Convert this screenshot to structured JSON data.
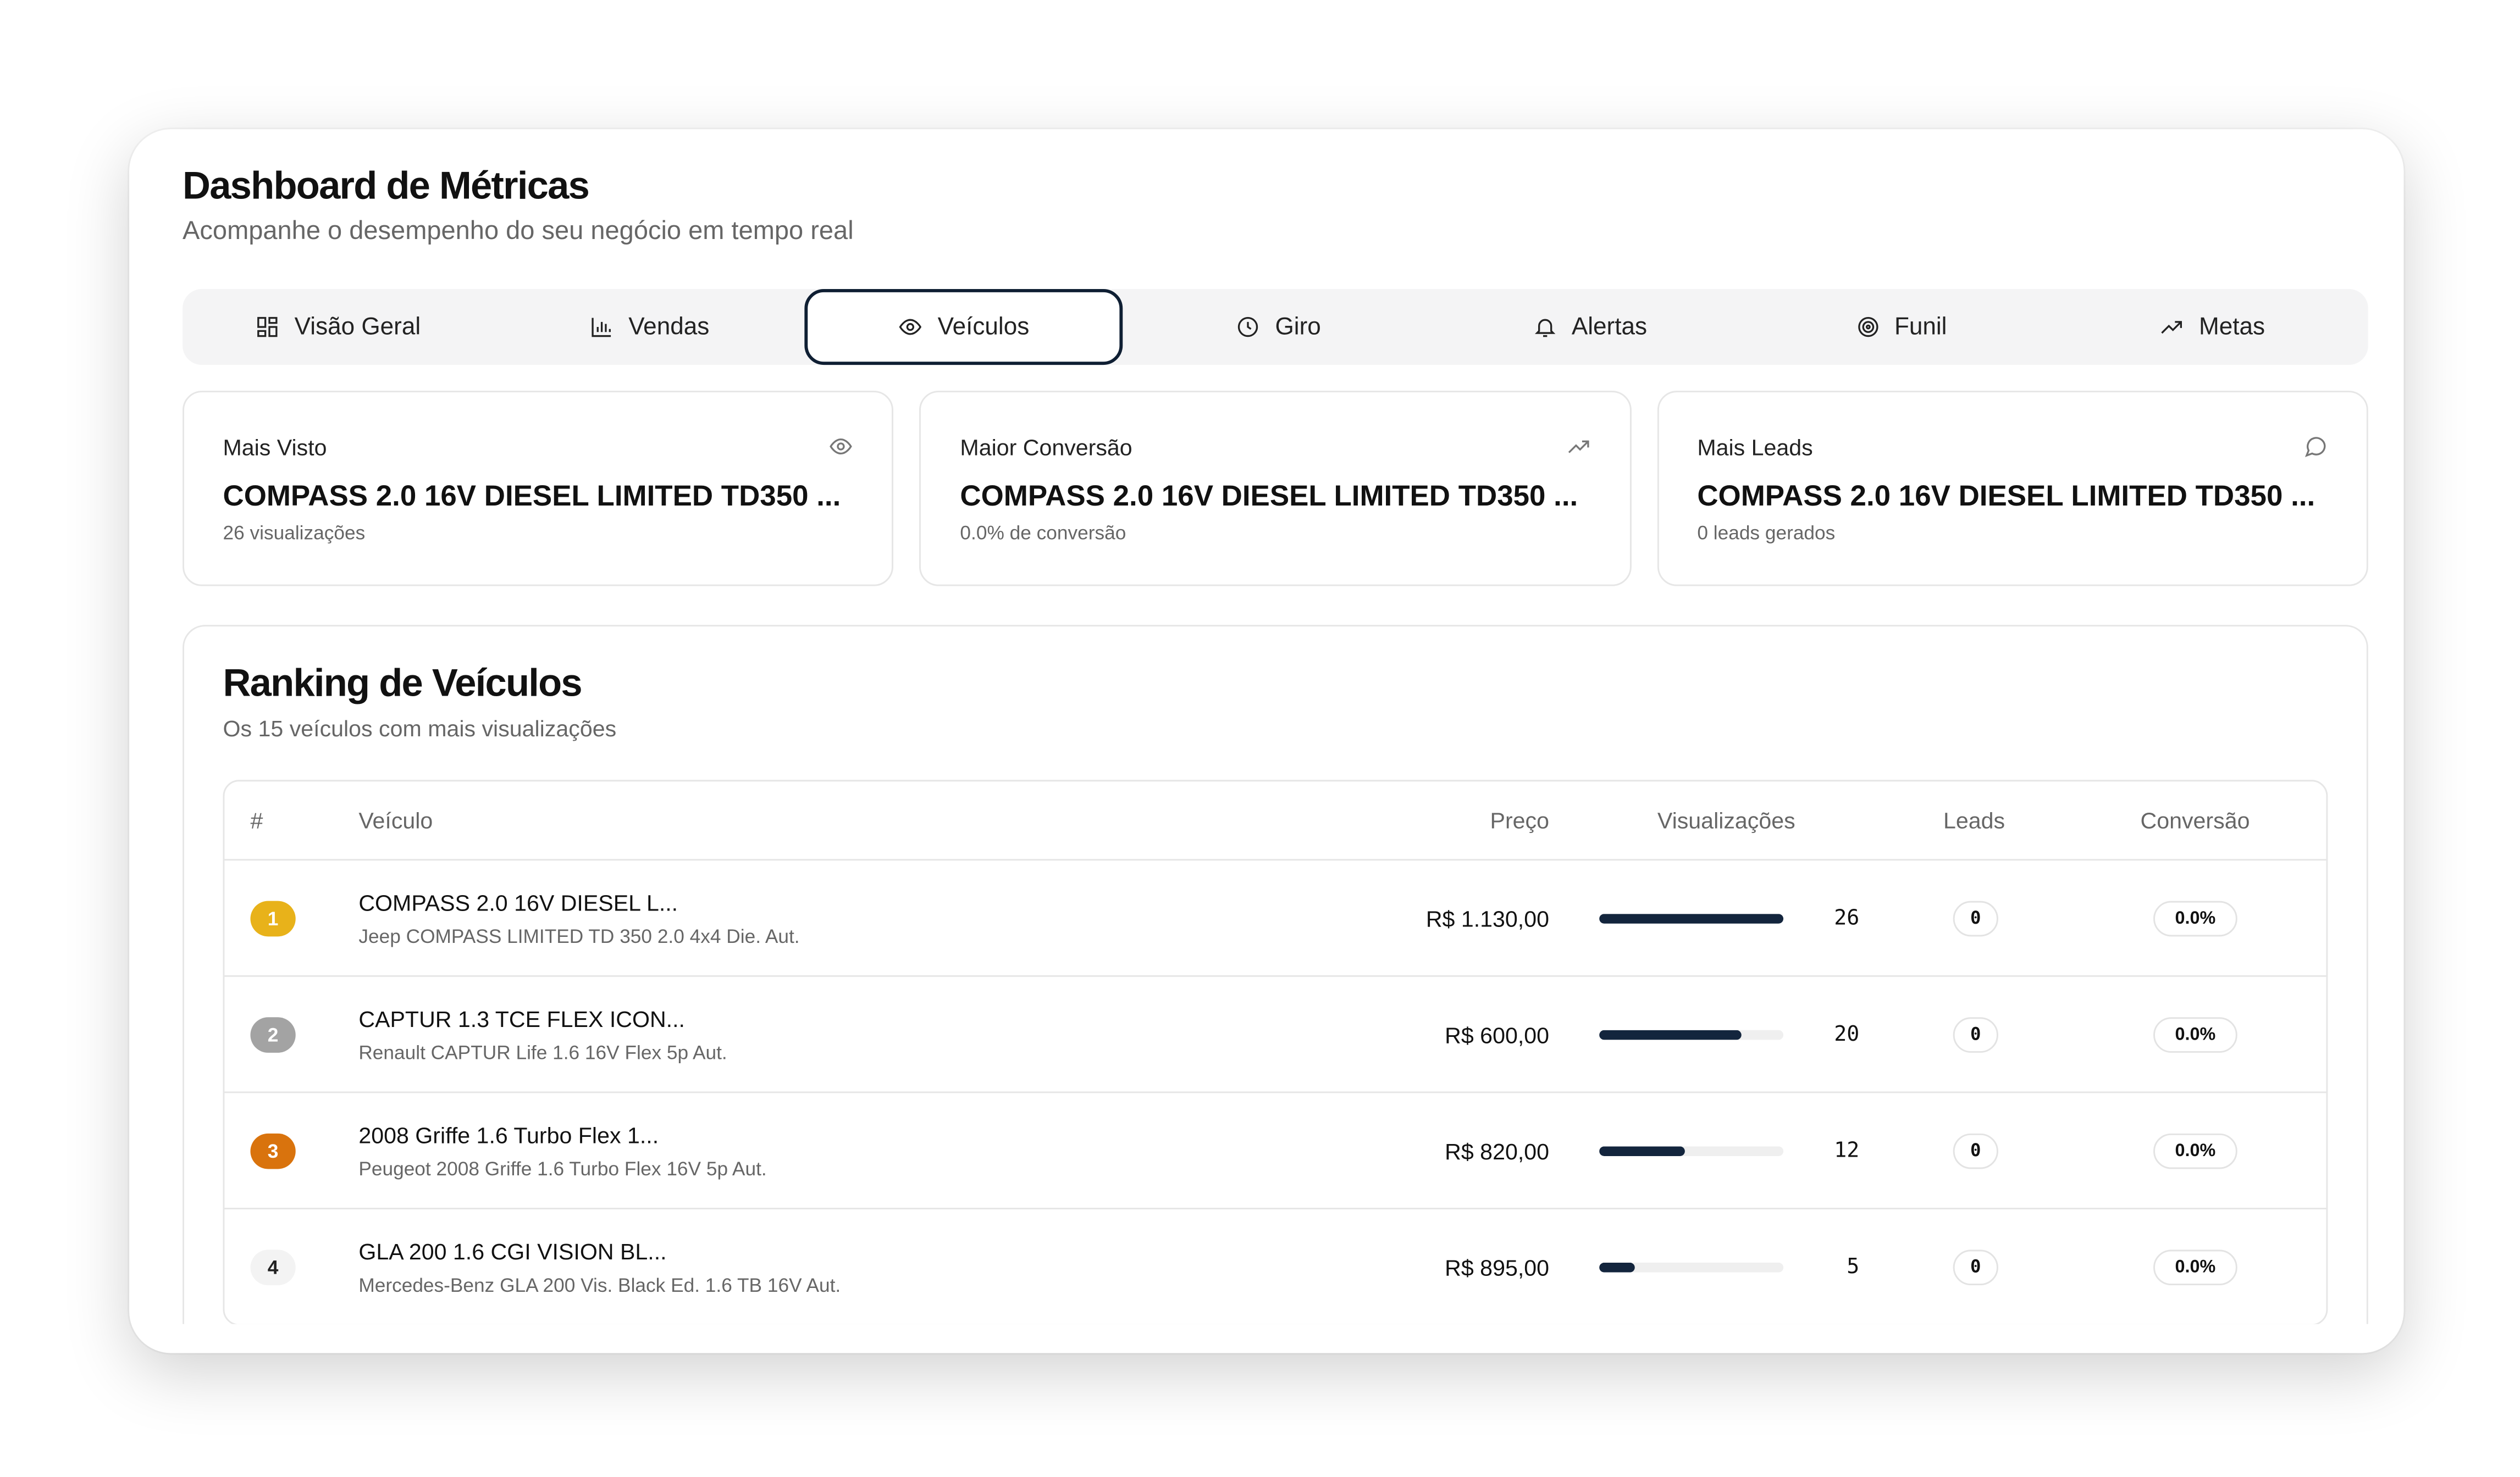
{
  "header": {
    "title": "Dashboard de Métricas",
    "subtitle": "Acompanhe o desempenho do seu negócio em tempo real"
  },
  "tabs": [
    {
      "label": "Visão Geral",
      "icon": "grid-icon"
    },
    {
      "label": "Vendas",
      "icon": "bar-chart-icon"
    },
    {
      "label": "Veículos",
      "icon": "eye-icon",
      "active": true
    },
    {
      "label": "Giro",
      "icon": "clock-icon"
    },
    {
      "label": "Alertas",
      "icon": "bell-icon"
    },
    {
      "label": "Funil",
      "icon": "target-icon"
    },
    {
      "label": "Metas",
      "icon": "trending-up-icon"
    }
  ],
  "stats": [
    {
      "label": "Mais Visto",
      "value": "COMPASS 2.0 16V DIESEL LIMITED TD350 ...",
      "desc": "26 visualizações",
      "icon": "eye-icon"
    },
    {
      "label": "Maior Conversão",
      "value": "COMPASS 2.0 16V DIESEL LIMITED TD350 ...",
      "desc": "0.0% de conversão",
      "icon": "trending-up-icon"
    },
    {
      "label": "Mais Leads",
      "value": "COMPASS 2.0 16V DIESEL LIMITED TD350 ...",
      "desc": "0 leads gerados",
      "icon": "message-icon"
    }
  ],
  "ranking": {
    "title": "Ranking de Veículos",
    "subtitle": "Os 15 veículos com mais visualizações",
    "columns": {
      "rank": "#",
      "vehicle": "Veículo",
      "price": "Preço",
      "views": "Visualizações",
      "leads": "Leads",
      "conversion": "Conversão"
    },
    "max_views": 26,
    "rows": [
      {
        "rank": "1",
        "name": "COMPASS 2.0 16V DIESEL L...",
        "model": "Jeep COMPASS LIMITED TD 350 2.0 4x4 Die. Aut.",
        "price": "R$ 1.130,00",
        "views": "26",
        "leads": "0",
        "conversion": "0.0%",
        "badge_color": "#e8b21a"
      },
      {
        "rank": "2",
        "name": "CAPTUR 1.3 TCE FLEX ICON...",
        "model": "Renault CAPTUR Life 1.6 16V Flex 5p Aut.",
        "price": "R$ 600,00",
        "views": "20",
        "leads": "0",
        "conversion": "0.0%",
        "badge_color": "#a3a3a3"
      },
      {
        "rank": "3",
        "name": "2008 Griffe 1.6 Turbo Flex 1...",
        "model": "Peugeot 2008 Griffe 1.6 Turbo Flex 16V 5p Aut.",
        "price": "R$ 820,00",
        "views": "12",
        "leads": "0",
        "conversion": "0.0%",
        "badge_color": "#d9730d"
      },
      {
        "rank": "4",
        "name": "GLA 200 1.6 CGI VISION BL...",
        "model": "Mercedes-Benz GLA 200 Vis. Black Ed. 1.6 TB 16V Aut.",
        "price": "R$ 895,00",
        "views": "5",
        "leads": "0",
        "conversion": "0.0%",
        "badge_color": "#f3f3f3"
      }
    ]
  }
}
